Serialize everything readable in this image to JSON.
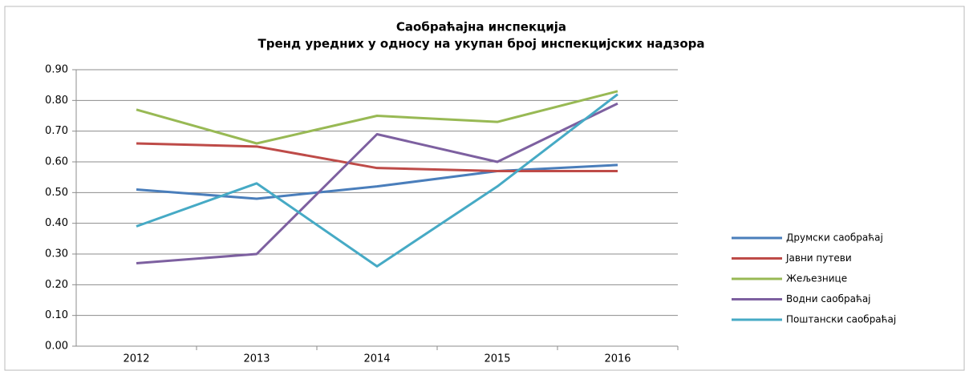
{
  "chart_data": {
    "type": "line",
    "title": "Саобраћајна  инспекција",
    "subtitle": "Тренд уредних у односу на укупан  број инспекцијских  надзора",
    "categories": [
      "2012",
      "2013",
      "2014",
      "2015",
      "2016"
    ],
    "series": [
      {
        "name": "Друмски саобраћај",
        "color": "#4a7ebb",
        "values": [
          0.51,
          0.48,
          0.52,
          0.57,
          0.59
        ]
      },
      {
        "name": "Јавни путеви",
        "color": "#be4b48",
        "values": [
          0.66,
          0.65,
          0.58,
          0.57,
          0.57
        ]
      },
      {
        "name": "Жељезнице",
        "color": "#98b954",
        "values": [
          0.77,
          0.66,
          0.75,
          0.73,
          0.83
        ]
      },
      {
        "name": "Водни саобраћај",
        "color": "#7d60a0",
        "values": [
          0.27,
          0.3,
          0.69,
          0.6,
          0.79
        ]
      },
      {
        "name": "Поштански саобраћај",
        "color": "#46aac5",
        "values": [
          0.39,
          0.53,
          0.26,
          0.52,
          0.82
        ]
      }
    ],
    "ylim": [
      0,
      0.9
    ],
    "yticks": [
      {
        "value": 0,
        "label": "0.00"
      },
      {
        "value": 0.1,
        "label": "0.10"
      },
      {
        "value": 0.2,
        "label": "0.20"
      },
      {
        "value": 0.3,
        "label": "0.30"
      },
      {
        "value": 0.4,
        "label": "0.40"
      },
      {
        "value": 0.5,
        "label": "0.50"
      },
      {
        "value": 0.6,
        "label": "0.60"
      },
      {
        "value": 0.7,
        "label": "0.70"
      },
      {
        "value": 0.8,
        "label": "0.80"
      },
      {
        "value": 0.9,
        "label": "0.90"
      }
    ],
    "grid": true,
    "legend": "right"
  }
}
